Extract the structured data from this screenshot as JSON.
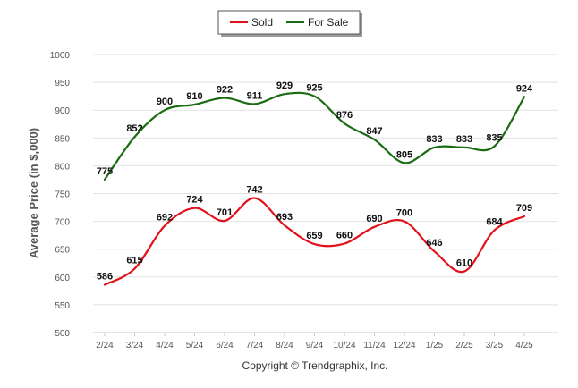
{
  "chart_data": {
    "type": "line",
    "categories": [
      "2/24",
      "3/24",
      "4/24",
      "5/24",
      "6/24",
      "7/24",
      "8/24",
      "9/24",
      "10/24",
      "11/24",
      "12/24",
      "1/25",
      "2/25",
      "3/25",
      "4/25"
    ],
    "series": [
      {
        "name": "Sold",
        "color": "#e3111b",
        "values": [
          586,
          615,
          692,
          724,
          701,
          742,
          693,
          659,
          660,
          690,
          700,
          646,
          610,
          684,
          709
        ]
      },
      {
        "name": "For Sale",
        "color": "#1a6b12",
        "values": [
          775,
          852,
          900,
          910,
          922,
          911,
          929,
          925,
          876,
          847,
          805,
          833,
          833,
          835,
          924
        ]
      }
    ],
    "ylabel": "Average Price (in $,000)",
    "xlabel": "",
    "ylim": [
      500,
      1000
    ],
    "yticks": [
      500,
      550,
      600,
      650,
      700,
      750,
      800,
      850,
      900,
      950,
      1000
    ],
    "grid": true,
    "legend": "top-center"
  },
  "footer": {
    "copyright": "Copyright © Trendgraphix, Inc."
  }
}
